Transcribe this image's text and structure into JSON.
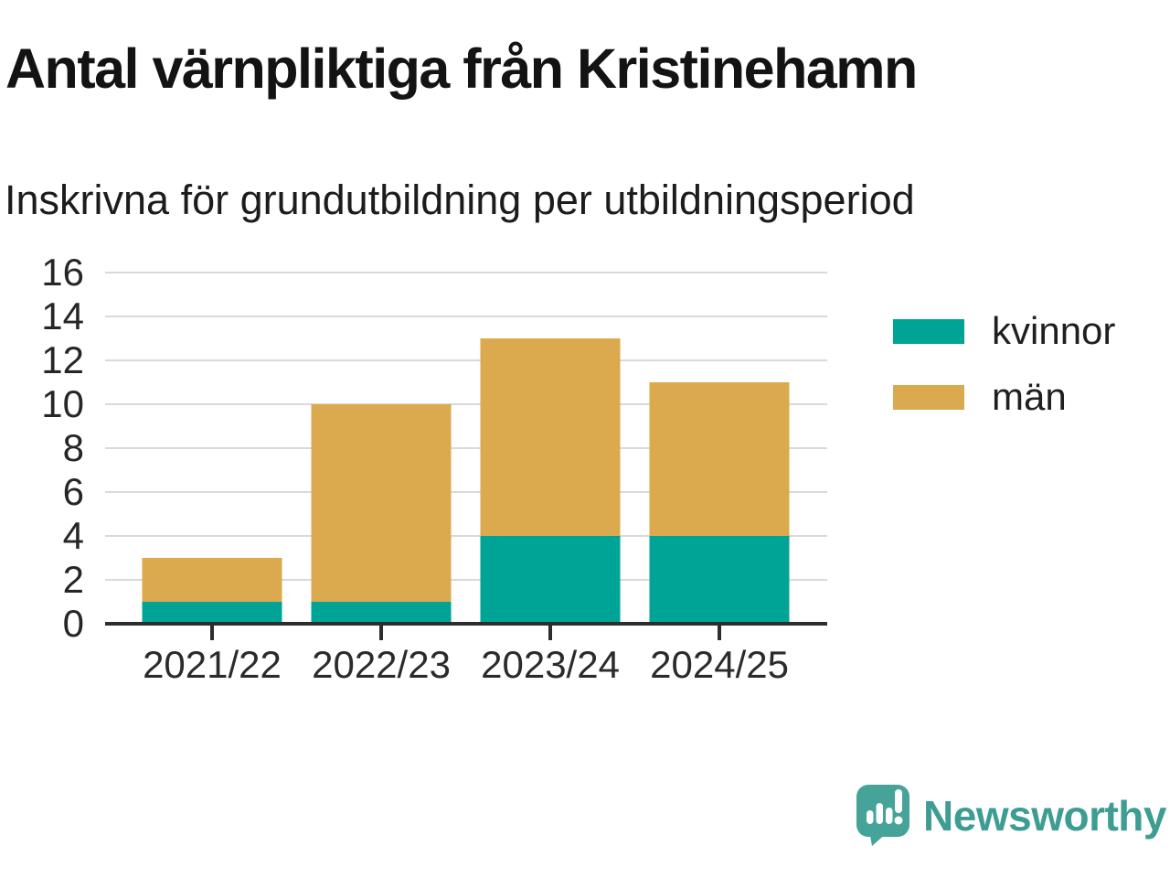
{
  "header": {
    "title": "Antal värnpliktiga från Kristinehamn",
    "subtitle": "Inskrivna för grundutbildning per utbildningsperiod"
  },
  "chart_data": {
    "type": "bar",
    "stacked": true,
    "title": "Antal värnpliktiga från Kristinehamn",
    "subtitle": "Inskrivna för grundutbildning per utbildningsperiod",
    "categories": [
      "2021/22",
      "2022/23",
      "2023/24",
      "2024/25"
    ],
    "series": [
      {
        "name": "kvinnor",
        "color": "#00a496",
        "values": [
          1,
          1,
          4,
          4
        ]
      },
      {
        "name": "män",
        "color": "#dba94e",
        "values": [
          2,
          9,
          9,
          7
        ]
      }
    ],
    "stack_totals": [
      3,
      10,
      13,
      11
    ],
    "ylim": [
      0,
      16
    ],
    "yticks": [
      0,
      2,
      4,
      6,
      8,
      10,
      12,
      14,
      16
    ],
    "xlabel": "",
    "ylabel": "",
    "grid": "horizontal",
    "legend_position": "right"
  },
  "footer": {
    "brand": "Newsworthy"
  },
  "icons": {
    "logo": "bar-chart-speech-bubble-icon"
  },
  "colors": {
    "kvinnor": "#00a496",
    "man": "#dba94e",
    "brand_teal": "#3e9d93",
    "logo_bubble": "#45a399",
    "gridline": "#d9d9d9",
    "axis_line": "#2d2d2d",
    "text": "#131313"
  }
}
